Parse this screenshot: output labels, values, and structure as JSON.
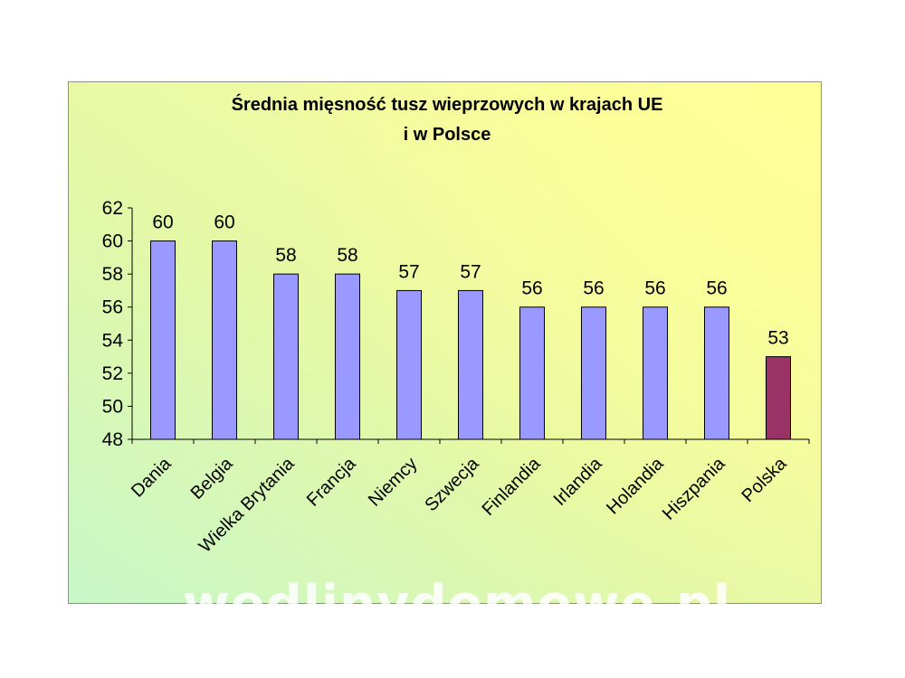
{
  "chart_data": {
    "type": "bar",
    "title_lines": [
      "Średnia mięsność tusz wieprzowych w krajach UE",
      "i w Polsce"
    ],
    "categories": [
      "Dania",
      "Belgia",
      "Wielka Brytania",
      "Francja",
      "Niemcy",
      "Szwecja",
      "Finlandia",
      "Irlandia",
      "Holandia",
      "Hiszpania",
      "Polska"
    ],
    "values": [
      60,
      60,
      58,
      58,
      57,
      57,
      56,
      56,
      56,
      56,
      53
    ],
    "data_labels": [
      "60",
      "60",
      "58",
      "58",
      "57",
      "57",
      "56",
      "56",
      "56",
      "56",
      "53"
    ],
    "ylim": [
      48,
      62
    ],
    "yticks": [
      48,
      50,
      52,
      54,
      56,
      58,
      60,
      62
    ],
    "ytick_labels": [
      "48",
      "50",
      "52",
      "54",
      "56",
      "58",
      "60",
      "62"
    ],
    "xlabel": "",
    "ylabel": "",
    "grid": false,
    "legend": "none",
    "colors": {
      "bar": "#9999ff",
      "highlight_bar": "#993366",
      "bar_stroke": "#000000"
    },
    "highlight_category": "Polska"
  },
  "watermark": "wedlinydomowe.pl"
}
